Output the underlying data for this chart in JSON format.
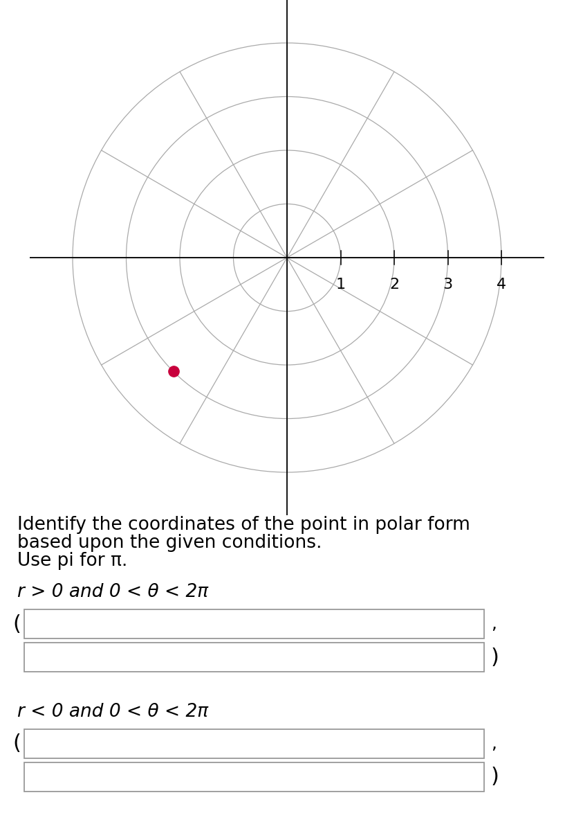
{
  "polar_max_r": 4,
  "radial_labels": [
    "1",
    "2",
    "3",
    "4"
  ],
  "angular_lines_deg": [
    0,
    30,
    60,
    90,
    120,
    150,
    180,
    210,
    240,
    270,
    300,
    330
  ],
  "point_r": 3,
  "point_theta_deg": 225,
  "point_color": "#C8003C",
  "grid_color": "#aaaaaa",
  "grid_linewidth": 0.9,
  "axis_linewidth": 1.3,
  "background_color": "#ffffff",
  "instruction_line1": "Identify the coordinates of the point in polar form",
  "instruction_line2": "based upon the given conditions.",
  "instruction_line3": "Use pi for π.",
  "condition1_text": "r > 0 and 0 < θ < 2π",
  "condition2_text": "r < 0 and 0 < θ < 2π",
  "box_color": "#ffffff",
  "box_edge_color": "#999999",
  "text_fontsize": 19,
  "condition_fontsize": 19
}
